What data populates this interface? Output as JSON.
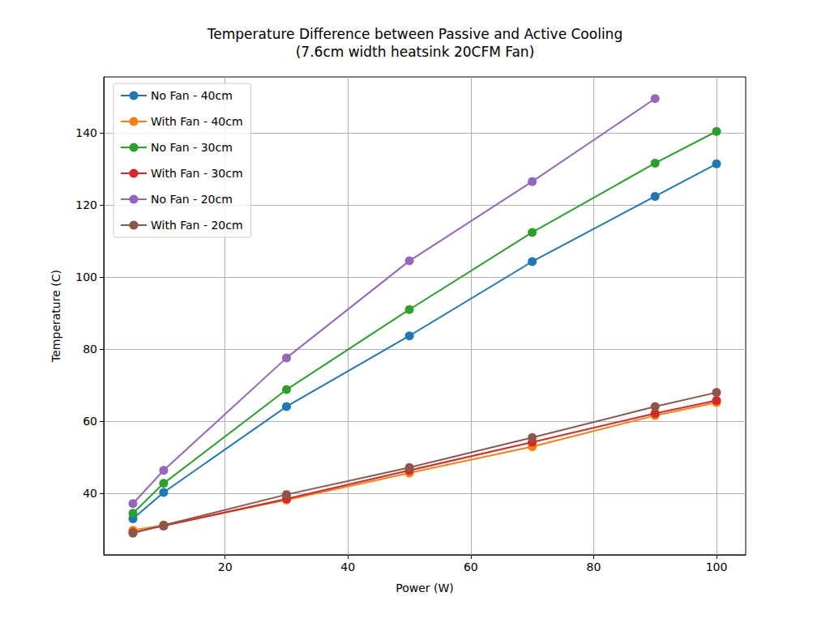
{
  "chart_data": {
    "type": "line",
    "title": "Temperature Difference between Passive and Active Cooling\n(7.6cm width heatsink 20CFM Fan)",
    "x_label": "Power (W)",
    "y_label": "Temperature (C)",
    "x": [
      5,
      10,
      30,
      50,
      70,
      90,
      100
    ],
    "series": [
      {
        "name": "No Fan - 40cm",
        "color": "#1f77b4",
        "values": [
          33.0,
          40.3,
          64.1,
          83.7,
          104.3,
          122.4,
          131.4
        ]
      },
      {
        "name": "With Fan - 40cm",
        "color": "#ff7f0e",
        "values": [
          29.8,
          31.2,
          38.2,
          45.7,
          53.0,
          61.6,
          65.2
        ]
      },
      {
        "name": "No Fan - 30cm",
        "color": "#2ca02c",
        "values": [
          34.5,
          42.8,
          68.8,
          91.0,
          112.4,
          131.6,
          140.4
        ]
      },
      {
        "name": "With Fan - 30cm",
        "color": "#d62728",
        "values": [
          29.2,
          31.0,
          38.5,
          46.4,
          54.2,
          62.2,
          65.8
        ]
      },
      {
        "name": "No Fan - 20cm",
        "color": "#9467bd",
        "values": [
          37.2,
          46.4,
          77.6,
          104.5,
          126.5,
          149.5,
          null
        ]
      },
      {
        "name": "With Fan - 20cm",
        "color": "#8c564b",
        "values": [
          29.0,
          31.2,
          39.7,
          47.2,
          55.5,
          64.1,
          68.0
        ]
      }
    ],
    "xlim": [
      0.25,
      104.75
    ],
    "xticks": [
      20,
      40,
      60,
      80,
      100
    ],
    "ylim": [
      23,
      155.5
    ],
    "yticks": [
      40,
      60,
      80,
      100,
      120,
      140
    ],
    "grid": true,
    "legend": "upper left",
    "marker": "circle"
  }
}
